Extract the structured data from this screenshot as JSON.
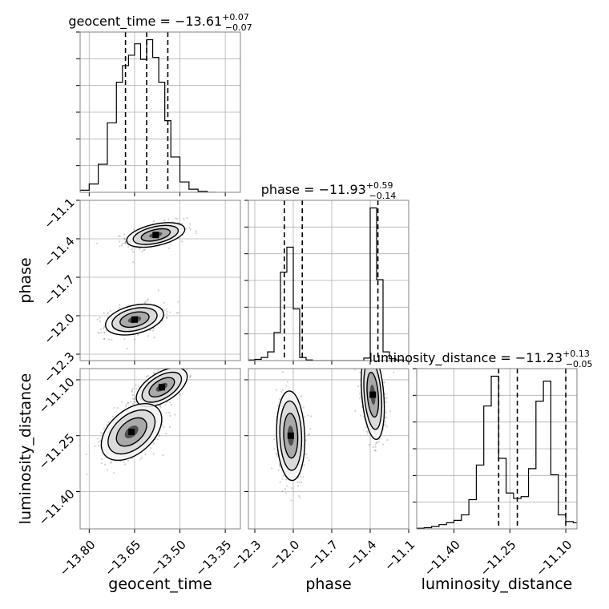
{
  "chart_data": {
    "type": "corner",
    "parameters": [
      "geocent_time",
      "phase",
      "luminosity_distance"
    ],
    "grid": true,
    "panels": [
      {
        "kind": "hist1d",
        "param": "geocent_time",
        "title": {
          "name": "geocent_time",
          "median": "−13.61",
          "plus": "+0.07",
          "minus": "−0.07"
        },
        "xlim": [
          -13.83,
          -13.3
        ],
        "quantiles": [
          -13.68,
          -13.61,
          -13.54
        ],
        "bin_edges": [
          -13.83,
          -13.8,
          -13.77,
          -13.74,
          -13.71,
          -13.69,
          -13.67,
          -13.65,
          -13.63,
          -13.61,
          -13.59,
          -13.57,
          -13.55,
          -13.53,
          -13.5,
          -13.47,
          -13.44,
          -13.41,
          -13.38
        ],
        "counts": [
          0.2,
          0.8,
          2.7,
          6.7,
          10.6,
          12.2,
          13.2,
          14.3,
          12.8,
          14.7,
          13.0,
          10.6,
          6.9,
          3.4,
          1.0,
          0.3,
          0.1,
          0.0
        ]
      },
      {
        "kind": "hist1d",
        "param": "phase",
        "title": {
          "name": "phase",
          "median": "−11.93",
          "plus": "+0.59",
          "minus": "−0.14"
        },
        "xlim": [
          -12.35,
          -11.1
        ],
        "quantiles": [
          -12.07,
          -11.93,
          -11.34
        ],
        "bin_edges": [
          -12.35,
          -12.3,
          -12.25,
          -12.2,
          -12.15,
          -12.1,
          -12.05,
          -12.0,
          -11.95,
          -11.9,
          -11.85,
          -11.8,
          -11.75,
          -11.7,
          -11.65,
          -11.6,
          -11.55,
          -11.5,
          -11.45,
          -11.4,
          -11.35,
          -11.3,
          -11.25,
          -11.2,
          -11.15,
          -11.1
        ],
        "counts": [
          0.1,
          0.2,
          0.5,
          1.4,
          4.5,
          14.2,
          18.2,
          8.3,
          0.5,
          0.1,
          0.0,
          0.0,
          0.0,
          0.0,
          0.0,
          0.0,
          0.0,
          0.0,
          0.4,
          24.5,
          13.0,
          1.4,
          0.3,
          0.1,
          0.0
        ]
      },
      {
        "kind": "hist1d",
        "param": "luminosity_distance",
        "title": {
          "name": "luminosity_distance",
          "median": "−11.23",
          "plus": "+0.13",
          "minus": "−0.05"
        },
        "xlim": [
          -11.5,
          -11.07
        ],
        "quantiles": [
          -11.28,
          -11.23,
          -11.1
        ],
        "bin_edges": [
          -11.5,
          -11.48,
          -11.46,
          -11.44,
          -11.42,
          -11.4,
          -11.38,
          -11.36,
          -11.34,
          -11.32,
          -11.3,
          -11.28,
          -11.26,
          -11.24,
          -11.22,
          -11.2,
          -11.18,
          -11.16,
          -11.14,
          -11.12,
          -11.1,
          -11.08,
          -11.06
        ],
        "counts": [
          0.1,
          0.2,
          0.4,
          0.7,
          1.0,
          1.4,
          2.3,
          4.8,
          10.5,
          20.2,
          25.1,
          11.6,
          5.9,
          5.0,
          5.3,
          9.9,
          21.0,
          24.3,
          8.9,
          2.3,
          1.2,
          1.0
        ]
      },
      {
        "kind": "hist2d",
        "x": "geocent_time",
        "y": "phase",
        "xlim": [
          -13.83,
          -13.3
        ],
        "ylim": [
          -12.35,
          -11.1
        ],
        "modes": [
          {
            "cx": -13.58,
            "cy": -11.37,
            "sx": 0.048,
            "sy": 0.048,
            "rho": 0.45,
            "weight": 0.5
          },
          {
            "cx": -13.65,
            "cy": -12.03,
            "sx": 0.048,
            "sy": 0.06,
            "rho": 0.35,
            "weight": 0.5
          }
        ]
      },
      {
        "kind": "hist2d",
        "x": "geocent_time",
        "y": "luminosity_distance",
        "xlim": [
          -13.83,
          -13.3
        ],
        "ylim": [
          -11.5,
          -11.07
        ],
        "modes": [
          {
            "cx": -13.56,
            "cy": -11.12,
            "sx": 0.042,
            "sy": 0.026,
            "rho": 0.55,
            "weight": 0.5
          },
          {
            "cx": -13.66,
            "cy": -11.24,
            "sx": 0.05,
            "sy": 0.038,
            "rho": 0.45,
            "weight": 0.5
          }
        ]
      },
      {
        "kind": "hist2d",
        "x": "phase",
        "y": "luminosity_distance",
        "xlim": [
          -12.35,
          -11.1
        ],
        "ylim": [
          -11.5,
          -11.07
        ],
        "modes": [
          {
            "cx": -12.02,
            "cy": -11.25,
            "sx": 0.055,
            "sy": 0.06,
            "rho": -0.1,
            "weight": 0.5
          },
          {
            "cx": -11.38,
            "cy": -11.14,
            "sx": 0.045,
            "sy": 0.06,
            "rho": -0.3,
            "weight": 0.5
          }
        ]
      }
    ],
    "ticks": {
      "geocent_time": [
        "−13.80",
        "−13.65",
        "−13.50",
        "−13.35"
      ],
      "phase": [
        "−12.3",
        "−12.0",
        "−11.7",
        "−11.4",
        "−11.1"
      ],
      "luminosity_distance": [
        "−11.40",
        "−11.25",
        "−11.10"
      ]
    },
    "tick_values": {
      "geocent_time": [
        -13.8,
        -13.65,
        -13.5,
        -13.35
      ],
      "phase": [
        -12.3,
        -12.0,
        -11.7,
        -11.4,
        -11.1
      ],
      "luminosity_distance": [
        -11.4,
        -11.25,
        -11.1
      ]
    },
    "axis_labels": {
      "x": [
        "geocent_time",
        "phase",
        "luminosity_distance"
      ],
      "y": [
        "phase",
        "luminosity_distance"
      ]
    }
  }
}
